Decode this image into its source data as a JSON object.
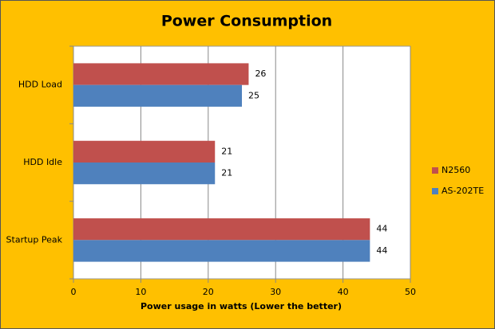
{
  "chart_data": {
    "type": "hbar",
    "title": "Power Consumption",
    "categories": [
      "HDD Load",
      "HDD Idle",
      "Startup Peak"
    ],
    "series": [
      {
        "name": "N2560",
        "color": "#c0504d",
        "values": [
          26,
          21,
          44
        ]
      },
      {
        "name": "AS-202TE",
        "color": "#4f81bd",
        "values": [
          25,
          21,
          44
        ]
      }
    ],
    "xlabel": "Power usage  in watts (Lower the better)",
    "xlim": [
      0,
      50
    ],
    "xticks": [
      0,
      10,
      20,
      30,
      40,
      50
    ],
    "grid": true,
    "legend": "right"
  }
}
